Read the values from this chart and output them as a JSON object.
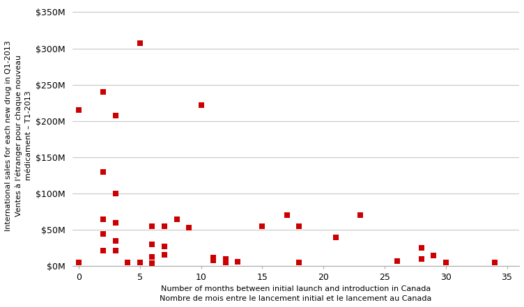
{
  "x": [
    0,
    0,
    2,
    2,
    2,
    2,
    2,
    3,
    3,
    3,
    3,
    3,
    4,
    5,
    5,
    6,
    6,
    6,
    6,
    7,
    7,
    7,
    8,
    9,
    10,
    11,
    11,
    11,
    11,
    12,
    12,
    13,
    15,
    17,
    18,
    18,
    21,
    23,
    26,
    28,
    28,
    29,
    30,
    34
  ],
  "y": [
    215,
    5,
    240,
    130,
    65,
    45,
    22,
    208,
    100,
    60,
    35,
    22,
    5,
    307,
    5,
    55,
    30,
    13,
    4,
    55,
    27,
    16,
    65,
    53,
    222,
    12,
    11,
    10,
    8,
    10,
    5,
    6,
    55,
    70,
    55,
    5,
    40,
    70,
    7,
    25,
    10,
    15,
    5,
    5
  ],
  "ylabel_line1": "International sales for each new drug in Q1-2013",
  "ylabel_line2": "Ventes à l'étranger pour chaque nouveau",
  "ylabel_line3": "médicament – T1-2013",
  "xlabel_line1": "Number of months between initial launch and introduction in Canada",
  "xlabel_line2": "Nombre de mois entre le lancement initial et le lancement au Canada",
  "ytick_labels": [
    "$0M",
    "$50M",
    "$100M",
    "$150M",
    "$200M",
    "$250M",
    "$300M",
    "$350M"
  ],
  "ytick_values": [
    0,
    50,
    100,
    150,
    200,
    250,
    300,
    350
  ],
  "xtick_values": [
    0,
    5,
    10,
    15,
    20,
    25,
    30,
    35
  ],
  "ylim": [
    0,
    360
  ],
  "xlim": [
    -0.5,
    36
  ],
  "marker_color": "#cc0000",
  "marker_size": 36,
  "background_color": "#ffffff",
  "grid_color": "#c8c8c8",
  "spine_color": "#aaaaaa",
  "tick_fontsize": 9,
  "label_fontsize": 8,
  "ylabel_fontsize": 8
}
